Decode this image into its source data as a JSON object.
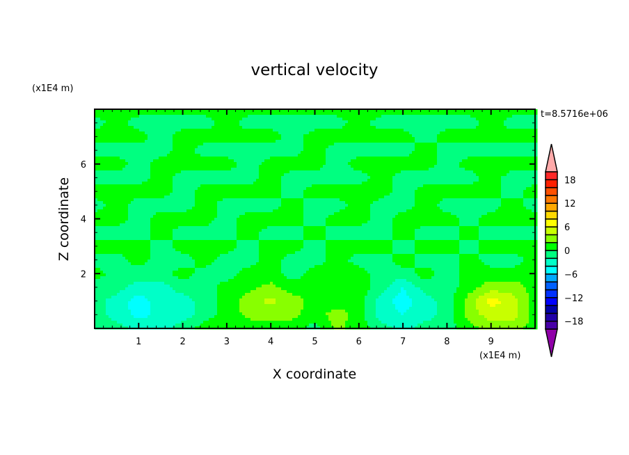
{
  "chart_data": {
    "type": "heatmap",
    "title": "vertical velocity",
    "xlabel": "X coordinate",
    "ylabel": "Z coordinate",
    "x_unit": "(x1E4 m)",
    "y_unit": "(x1E4 m)",
    "time_label": "t=8.5716e+06",
    "xlim": [
      0,
      10
    ],
    "ylim": [
      0,
      8
    ],
    "x_ticks": [
      1,
      2,
      3,
      4,
      5,
      6,
      7,
      8,
      9
    ],
    "y_ticks": [
      2,
      4,
      6
    ],
    "grid": false,
    "legend_placement": "right",
    "colorbar": {
      "levels": [
        -20,
        -18,
        -16,
        -14,
        -12,
        -10,
        -8,
        -6,
        -4,
        -2,
        0,
        2,
        4,
        6,
        8,
        10,
        12,
        14,
        16,
        18,
        20
      ],
      "tick_labels": [
        "18",
        "12",
        "6",
        "0",
        "−6",
        "−12",
        "−18"
      ],
      "tick_values": [
        18,
        12,
        6,
        0,
        -6,
        -12,
        -18
      ],
      "colors": [
        "#4800a8",
        "#2000a8",
        "#0000a8",
        "#0000ff",
        "#0030ff",
        "#0060ff",
        "#00a8ff",
        "#00ffff",
        "#00ffc8",
        "#00ff80",
        "#00ff00",
        "#88ff00",
        "#c8ff00",
        "#ffff00",
        "#ffd800",
        "#ffa800",
        "#ff7800",
        "#ff5000",
        "#ff2000",
        "#ff2828"
      ],
      "under_color": "#9000a8",
      "over_color": "#ffaaaa"
    },
    "grid_x": [
      0,
      0.5,
      1,
      1.5,
      2,
      2.5,
      3,
      3.5,
      4,
      4.5,
      5,
      5.5,
      6,
      6.5,
      7,
      7.5,
      8,
      8.5,
      9,
      9.5,
      10
    ],
    "grid_z": [
      0,
      0.5,
      1,
      1.5,
      2,
      2.5,
      3,
      3.5,
      4,
      4.5,
      5,
      5.5,
      6,
      6.5,
      7,
      7.5,
      8
    ],
    "values": [
      [
        -1,
        -1,
        -3,
        -3,
        -1,
        1,
        1,
        1,
        1,
        1,
        -1,
        2.5,
        1,
        -1,
        -3,
        -1,
        -1,
        1,
        3,
        3,
        1
      ],
      [
        -1,
        -3,
        -4.5,
        -3.5,
        -3,
        -1,
        1,
        2.5,
        3,
        2.5,
        1,
        3,
        1,
        -3,
        -4,
        -3,
        -1,
        3,
        5,
        5,
        1
      ],
      [
        -1,
        -3,
        -5,
        -3,
        -3,
        -1,
        1,
        3,
        4.5,
        3,
        1,
        1,
        1,
        -3,
        -5,
        -3,
        -1,
        3,
        7,
        5,
        1
      ],
      [
        -1,
        -1,
        -3,
        -3,
        -1,
        -1,
        1,
        1.5,
        2.5,
        1,
        1,
        1,
        1,
        -1,
        -4,
        -1,
        -1,
        1,
        3,
        3,
        1
      ],
      [
        1,
        -1,
        -1,
        -1,
        1,
        -1,
        -1,
        1,
        1,
        -1,
        1,
        1,
        1,
        -1,
        -1,
        1,
        -1,
        1,
        1,
        1,
        1
      ],
      [
        -1,
        -1,
        1,
        -1,
        -1,
        1,
        -1,
        -1,
        1,
        -1,
        -1,
        1,
        -1,
        -1,
        1,
        -1,
        -1,
        1,
        -1,
        -1,
        1
      ],
      [
        1,
        1,
        1,
        -1,
        1,
        1,
        1,
        -1,
        1,
        1,
        -1,
        1,
        1,
        1,
        -1,
        1,
        1,
        -1,
        1,
        1,
        1
      ],
      [
        -1,
        -1,
        -1,
        1,
        -1,
        -1,
        -1,
        1,
        -1,
        -1,
        1,
        -1,
        -1,
        -1,
        1,
        -1,
        -1,
        1,
        -1,
        -1,
        -1
      ],
      [
        1,
        1,
        -1,
        1,
        1,
        1,
        -1,
        1,
        1,
        1,
        -1,
        1,
        1,
        -1,
        1,
        1,
        1,
        -1,
        1,
        1,
        1
      ],
      [
        -1,
        1,
        -1,
        -1,
        -1,
        1,
        -1,
        -1,
        -1,
        1,
        -1,
        -1,
        1,
        -1,
        -1,
        1,
        -1,
        -1,
        -1,
        1,
        -1
      ],
      [
        1,
        1,
        1,
        1,
        -1,
        1,
        1,
        1,
        1,
        -1,
        1,
        1,
        1,
        1,
        -1,
        1,
        1,
        1,
        1,
        -1,
        1
      ],
      [
        -1,
        -1,
        -1,
        1,
        -1,
        -1,
        -1,
        -1,
        1,
        -1,
        -1,
        -1,
        -1,
        1,
        -1,
        -1,
        -1,
        -1,
        1,
        -1,
        -1
      ],
      [
        1,
        1,
        -1,
        1,
        1,
        1,
        1,
        -1,
        1,
        1,
        1,
        -1,
        1,
        1,
        1,
        1,
        -1,
        1,
        1,
        1,
        1
      ],
      [
        -1,
        -1,
        -1,
        -1,
        1,
        -1,
        -1,
        -1,
        -1,
        -1,
        1,
        -1,
        -1,
        -1,
        -1,
        1,
        -1,
        -1,
        -1,
        -1,
        -1
      ],
      [
        1,
        1,
        1,
        -1,
        1,
        1,
        1,
        1,
        1,
        -1,
        1,
        1,
        1,
        1,
        1,
        -1,
        1,
        1,
        1,
        1,
        1
      ],
      [
        -1,
        1,
        -1,
        -1,
        -1,
        -1,
        1,
        -1,
        -1,
        -1,
        -1,
        -1,
        1,
        -1,
        -1,
        -1,
        -1,
        -1,
        1,
        -1,
        -1
      ],
      [
        1,
        1,
        1,
        1,
        1,
        1,
        1,
        1,
        1,
        1,
        1,
        1,
        1,
        1,
        1,
        1,
        1,
        1,
        1,
        1,
        1
      ]
    ]
  }
}
